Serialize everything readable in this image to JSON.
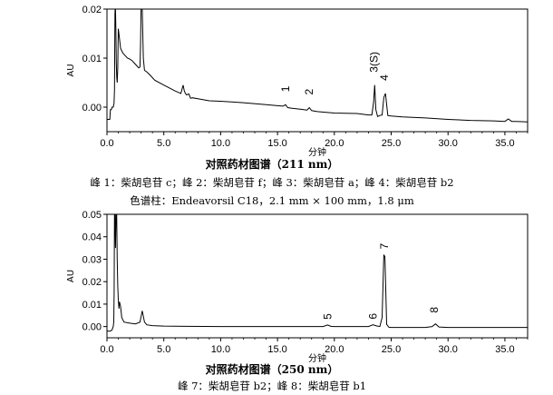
{
  "chart_data": [
    {
      "type": "line",
      "title": "对照药材图谱（211 nm）",
      "xlabel": "分钟",
      "ylabel": "AU",
      "xlim": [
        0,
        37
      ],
      "ylim": [
        -0.005,
        0.02
      ],
      "xticks": [
        "0.0",
        "5.0",
        "10.0",
        "15.0",
        "20.0",
        "25.0",
        "30.0",
        "35.0"
      ],
      "yticks": [
        "0.02",
        "0.01",
        "0.00"
      ],
      "grid": false,
      "series": [
        {
          "x": [
            0,
            0.25,
            0.3,
            0.38,
            0.45,
            0.55,
            0.62,
            0.66,
            0.7,
            0.72,
            0.75,
            0.78,
            0.82,
            0.86,
            0.9,
            0.95,
            1.0,
            1.1,
            1.2,
            1.4,
            1.6,
            1.8,
            2.0,
            2.2,
            2.4,
            2.6,
            2.8,
            2.9,
            2.95,
            3.0,
            3.1,
            3.2,
            3.3,
            3.5,
            3.8,
            4.2,
            5.0,
            6.0,
            6.5,
            6.7,
            6.8,
            6.9,
            7.0,
            7.2,
            7.35,
            7.5,
            8.0,
            9.0,
            10.0,
            12.0,
            14.0,
            15.0,
            15.5,
            15.7,
            15.9,
            16.2,
            17.0,
            17.6,
            17.8,
            18.0,
            18.5,
            20.0,
            22.0,
            23.0,
            23.3,
            23.45,
            23.55,
            23.65,
            23.8,
            24.0,
            24.2,
            24.35,
            24.5,
            24.7,
            25.0,
            26.0,
            28.0,
            30.0,
            32.0,
            34.0,
            35.0,
            35.3,
            35.6,
            36.0,
            37.0
          ],
          "y": [
            -0.0025,
            -0.0025,
            -0.0005,
            -0.0005,
            0.0,
            0.0,
            0.0008,
            0.0035,
            0.019,
            0.02,
            0.02,
            0.016,
            0.009,
            0.006,
            0.005,
            0.008,
            0.016,
            0.014,
            0.012,
            0.011,
            0.0105,
            0.01,
            0.0098,
            0.0095,
            0.009,
            0.0085,
            0.008,
            0.0082,
            0.0125,
            0.02,
            0.02,
            0.01,
            0.0075,
            0.0072,
            0.0065,
            0.0055,
            0.0045,
            0.0033,
            0.0028,
            0.0045,
            0.0033,
            0.0028,
            0.0025,
            0.0027,
            0.0018,
            0.0019,
            0.0017,
            0.0013,
            0.0012,
            0.0009,
            0.0005,
            0.0003,
            0.0002,
            0.0005,
            -0.0001,
            -0.0002,
            -0.0004,
            -0.0006,
            -0.0001,
            -0.0007,
            -0.0009,
            -0.0012,
            -0.0013,
            -0.0016,
            -0.0016,
            0.001,
            0.0045,
            -0.0005,
            -0.0019,
            -0.0017,
            -0.0016,
            0.002,
            0.0028,
            -0.0017,
            -0.0018,
            -0.002,
            -0.0022,
            -0.0025,
            -0.0027,
            -0.0028,
            -0.0029,
            -0.0024,
            -0.0029,
            -0.0029,
            -0.003
          ]
        }
      ],
      "annotations": [
        {
          "label": "1",
          "x": 15.7
        },
        {
          "label": "2",
          "x": 17.8
        },
        {
          "label": "3(S)",
          "x": 23.5
        },
        {
          "label": "4",
          "x": 24.4
        }
      ],
      "caption_lines": [
        "峰 1：柴胡皂苷 c；峰 2：柴胡皂苷 f；峰 3：柴胡皂苷 a；峰 4：柴胡皂苷 b2",
        "色谱柱：Endeavorsil C18，2.1 mm × 100 mm，1.8 μm"
      ]
    },
    {
      "type": "line",
      "title": "对照药材图谱（250 nm）",
      "xlabel": "分钟",
      "ylabel": "AU",
      "xlim": [
        0,
        37
      ],
      "ylim": [
        -0.005,
        0.05
      ],
      "xticks": [
        "0.0",
        "5.0",
        "10.0",
        "15.0",
        "20.0",
        "25.0",
        "30.0",
        "35.0"
      ],
      "yticks": [
        "0.05",
        "0.04",
        "0.03",
        "0.02",
        "0.01",
        "0.00"
      ],
      "grid": false,
      "series": [
        {
          "x": [
            0,
            0.3,
            0.45,
            0.55,
            0.6,
            0.63,
            0.66,
            0.7,
            0.75,
            0.8,
            0.85,
            0.9,
            0.95,
            1.0,
            1.05,
            1.1,
            1.2,
            1.3,
            1.5,
            2.0,
            2.5,
            2.9,
            3.1,
            3.3,
            3.5,
            4.0,
            5.0,
            7.0,
            10.0,
            15.0,
            19.0,
            19.4,
            19.7,
            20.0,
            23.0,
            23.4,
            23.7,
            24.0,
            24.2,
            24.35,
            24.45,
            24.6,
            24.8,
            25.0,
            28.0,
            28.6,
            28.9,
            29.2,
            30.0,
            33.0,
            37.0
          ],
          "y": [
            -0.002,
            -0.002,
            -0.0015,
            0.0,
            0.002,
            0.015,
            0.05,
            0.05,
            0.035,
            0.05,
            0.05,
            0.03,
            0.018,
            0.012,
            0.008,
            0.011,
            0.009,
            0.004,
            0.002,
            0.0015,
            0.0012,
            0.002,
            0.007,
            0.002,
            0.0008,
            0.0004,
            0.0002,
            0.0001,
            0.0,
            0.0,
            0.0,
            0.0007,
            0.0001,
            0.0,
            0.0,
            0.0008,
            0.0003,
            0.0,
            0.004,
            0.032,
            0.031,
            0.001,
            -0.0003,
            -0.0004,
            -0.0004,
            0.0,
            0.0012,
            -0.0002,
            -0.0004,
            -0.0004,
            -0.0004
          ]
        }
      ],
      "annotations": [
        {
          "label": "5",
          "x": 19.4
        },
        {
          "label": "6",
          "x": 23.4
        },
        {
          "label": "7",
          "x": 24.4
        },
        {
          "label": "8",
          "x": 28.8
        }
      ],
      "caption_lines": [
        "峰 7：柴胡皂苷 b2；峰 8：柴胡皂苷 b1"
      ]
    }
  ],
  "colors": {
    "line": "#000000",
    "axis": "#000000"
  }
}
